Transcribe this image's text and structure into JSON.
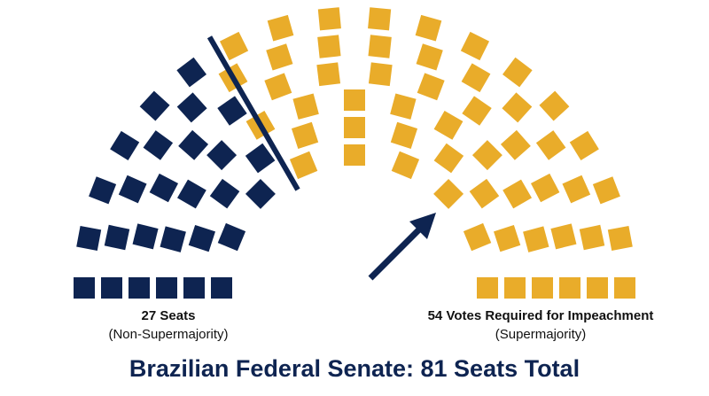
{
  "chart_data": {
    "type": "parliament",
    "title": "Brazilian Federal Senate: 81 Seats Total",
    "series": [
      {
        "name": "27 Seats",
        "note": "(Non-Supermajority)",
        "color": "#0e2451",
        "value": 27
      },
      {
        "name": "54 Votes Required for Impeachment",
        "note": "(Supermajority)",
        "color": "#e9ac2a",
        "value": 54
      }
    ]
  }
}
